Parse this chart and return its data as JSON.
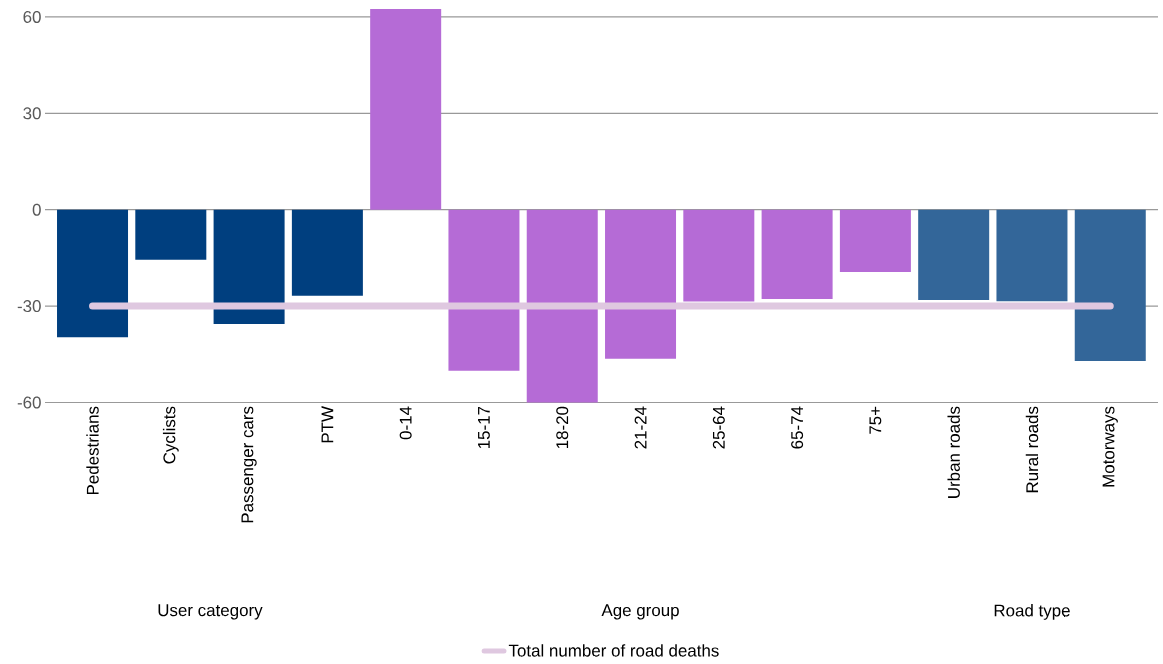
{
  "chart_data": {
    "type": "bar",
    "categories": [
      "Pedestrians",
      "Cyclists",
      "Passenger cars",
      "PTW",
      "0-14",
      "15-17",
      "18-20",
      "21-24",
      "25-64",
      "65-74",
      "75+",
      "Urban roads",
      "Rural roads",
      "Motorways"
    ],
    "series": [
      {
        "color": "#003f7f",
        "values": [
          -39.7,
          -15.6,
          -35.6,
          -26.8,
          null,
          null,
          null,
          null,
          null,
          null,
          null,
          null,
          null,
          null
        ]
      },
      {
        "color": "#b56bd6",
        "values": [
          null,
          null,
          null,
          null,
          62.5,
          -50.1,
          -60,
          -46.4,
          -28.6,
          -27.8,
          -19.4,
          null,
          null,
          null
        ]
      },
      {
        "color": "#336699",
        "values": [
          null,
          null,
          null,
          null,
          null,
          null,
          null,
          null,
          null,
          null,
          null,
          -28.1,
          -28.5,
          -47.1
        ]
      },
      {
        "type": "line",
        "name": "Total number of road deaths",
        "color": "#dfc8e0",
        "values": [
          -30,
          -30,
          -30,
          -30,
          -30,
          -30,
          -30,
          -30,
          -30,
          -30,
          -30,
          -30,
          -30,
          -30
        ]
      }
    ],
    "annotations": [
      "User category",
      "Age group",
      "Road type"
    ],
    "ylim": [
      -60,
      63
    ],
    "yticks": [
      -60,
      -30,
      0,
      30,
      60
    ],
    "grid": "y",
    "legend": "bottom"
  }
}
